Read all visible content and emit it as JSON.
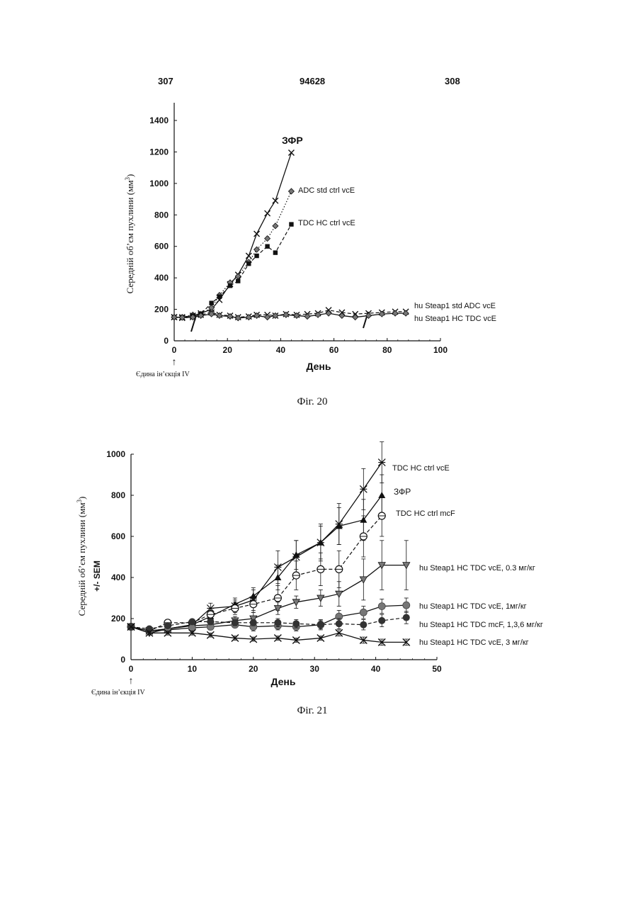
{
  "header": {
    "left": "307",
    "center": "94628",
    "right": "308"
  },
  "figures": [
    {
      "caption": "Фіг. 20",
      "injection_note": "Єдина ін’єкція IV"
    },
    {
      "caption": "Фіг. 21",
      "injection_note": "Єдина ін’єкція IV"
    }
  ],
  "colors": {
    "ink": "#111111",
    "marker_gray": "#777777"
  },
  "chart_data": [
    {
      "type": "line",
      "xlabel": "День",
      "ylabel": "Середній об’єм пухлини (мм",
      "ylabel_sup": "3",
      "ylabel_close": ")",
      "xlim": [
        0,
        100
      ],
      "ylim": [
        0,
        1400
      ],
      "xticks": [
        0,
        20,
        40,
        60,
        80,
        100
      ],
      "yticks": [
        0,
        200,
        400,
        600,
        800,
        1000,
        1200,
        1400
      ],
      "series": [
        {
          "name": "ЗФР",
          "marker": "x",
          "dash": "solid",
          "x": [
            0,
            3,
            7,
            10,
            14,
            17,
            21,
            24,
            28,
            31,
            35,
            38,
            44
          ],
          "y": [
            150,
            150,
            160,
            175,
            200,
            260,
            360,
            420,
            540,
            680,
            810,
            890,
            1195
          ]
        },
        {
          "name": "ADC std ctrl vcE",
          "marker": "diamond",
          "dash": "dotted",
          "x": [
            0,
            3,
            7,
            10,
            14,
            17,
            21,
            24,
            28,
            31,
            35,
            38,
            44
          ],
          "y": [
            150,
            150,
            165,
            170,
            210,
            290,
            370,
            410,
            500,
            580,
            650,
            730,
            950
          ]
        },
        {
          "name": "TDC HC ctrl vcE",
          "marker": "square",
          "dash": "dashed",
          "x": [
            0,
            3,
            7,
            10,
            14,
            17,
            21,
            24,
            28,
            31,
            35,
            38,
            44
          ],
          "y": [
            150,
            150,
            160,
            170,
            240,
            280,
            350,
            380,
            490,
            540,
            600,
            560,
            740
          ]
        },
        {
          "name": "hu Steap1 std ADC vcE",
          "marker": "x",
          "dash": "dashed",
          "x": [
            0,
            3,
            7,
            10,
            14,
            17,
            21,
            24,
            28,
            31,
            35,
            38,
            42,
            46,
            50,
            54,
            58,
            63,
            68,
            73,
            78,
            83,
            87
          ],
          "y": [
            150,
            145,
            150,
            165,
            180,
            165,
            160,
            150,
            155,
            165,
            165,
            160,
            170,
            165,
            170,
            175,
            195,
            180,
            170,
            175,
            180,
            185,
            185
          ]
        },
        {
          "name": "hu Steap1 HC TDC vcE",
          "marker": "diamond",
          "dash": "solid",
          "x": [
            0,
            3,
            7,
            10,
            14,
            17,
            21,
            24,
            28,
            31,
            35,
            38,
            42,
            46,
            50,
            54,
            58,
            63,
            68,
            73,
            78,
            83,
            87
          ],
          "y": [
            150,
            148,
            150,
            160,
            170,
            160,
            155,
            145,
            150,
            160,
            150,
            160,
            165,
            160,
            155,
            165,
            175,
            160,
            150,
            160,
            170,
            175,
            175
          ]
        }
      ]
    },
    {
      "type": "line",
      "xlabel": "День",
      "ylabel": "Середній об’єм пухлини (мм",
      "ylabel_sup": "3",
      "ylabel_close": ")",
      "ylabel2": "+/- SEM",
      "xlim": [
        0,
        50
      ],
      "ylim": [
        0,
        1000
      ],
      "xticks": [
        0,
        10,
        20,
        30,
        40,
        50
      ],
      "yticks": [
        0,
        200,
        400,
        600,
        800,
        1000
      ],
      "series": [
        {
          "name": "TDC HC ctrl vcE",
          "marker": "star",
          "dash": "solid",
          "x": [
            0,
            3,
            6,
            10,
            13,
            17,
            20,
            24,
            27,
            31,
            34,
            38,
            41
          ],
          "y": [
            160,
            140,
            150,
            170,
            250,
            260,
            290,
            450,
            500,
            570,
            660,
            830,
            960
          ],
          "err": [
            0,
            10,
            10,
            15,
            25,
            30,
            50,
            80,
            80,
            90,
            100,
            100,
            100
          ]
        },
        {
          "name": "ЗФР",
          "marker": "triangle",
          "dash": "solid",
          "x": [
            0,
            3,
            6,
            10,
            13,
            17,
            20,
            24,
            27,
            31,
            34,
            38,
            41
          ],
          "y": [
            160,
            140,
            150,
            170,
            210,
            270,
            310,
            400,
            510,
            570,
            650,
            680,
            800
          ],
          "err": [
            0,
            10,
            10,
            15,
            20,
            30,
            40,
            60,
            70,
            80,
            90,
            100,
            100
          ]
        },
        {
          "name": "TDC HC ctrl mcF",
          "marker": "circle-open",
          "dash": "dashed",
          "x": [
            0,
            3,
            6,
            10,
            13,
            17,
            20,
            24,
            27,
            31,
            34,
            38,
            41
          ],
          "y": [
            160,
            140,
            180,
            180,
            220,
            250,
            270,
            300,
            410,
            440,
            440,
            600,
            700
          ],
          "err": [
            0,
            10,
            10,
            15,
            20,
            30,
            40,
            60,
            70,
            80,
            90,
            100,
            100
          ]
        },
        {
          "name": "hu Steap1 HC TDC vcE, 0.3 мг/кг",
          "marker": "triangle-down",
          "dash": "solid",
          "x": [
            0,
            3,
            6,
            10,
            13,
            17,
            20,
            24,
            27,
            31,
            34,
            38,
            41,
            45
          ],
          "y": [
            160,
            130,
            150,
            165,
            170,
            190,
            200,
            250,
            280,
            300,
            320,
            390,
            460,
            460
          ],
          "err": [
            0,
            10,
            10,
            15,
            20,
            20,
            30,
            30,
            30,
            40,
            60,
            100,
            120,
            120
          ]
        },
        {
          "name": "hu Steap1 HC TDC vcE, 1мг/кг",
          "marker": "circle-gray",
          "dash": "solid",
          "x": [
            0,
            3,
            6,
            10,
            13,
            17,
            20,
            24,
            27,
            31,
            34,
            38,
            41,
            45
          ],
          "y": [
            160,
            140,
            145,
            155,
            160,
            170,
            160,
            165,
            160,
            170,
            210,
            230,
            260,
            265
          ],
          "err": [
            0,
            10,
            10,
            10,
            15,
            15,
            20,
            20,
            20,
            25,
            30,
            30,
            35,
            35
          ]
        },
        {
          "name": "hu Steap1 HC TDC mcF, 1,3,6 мг/кг",
          "marker": "circle-filled",
          "dash": "dashed",
          "x": [
            0,
            3,
            6,
            10,
            13,
            17,
            20,
            24,
            27,
            31,
            34,
            38,
            41,
            45
          ],
          "y": [
            160,
            150,
            165,
            185,
            185,
            180,
            180,
            180,
            175,
            170,
            175,
            170,
            190,
            205
          ],
          "err": [
            0,
            10,
            10,
            10,
            15,
            15,
            15,
            20,
            20,
            20,
            25,
            25,
            30,
            30
          ]
        },
        {
          "name": "hu Steap1 HC TDC vcE, 3 мг/кг",
          "marker": "x",
          "dash": "solid",
          "x": [
            0,
            3,
            6,
            10,
            13,
            17,
            20,
            24,
            27,
            31,
            34,
            38,
            41,
            45
          ],
          "y": [
            160,
            130,
            130,
            130,
            120,
            105,
            100,
            105,
            95,
            105,
            130,
            95,
            85,
            85
          ],
          "err": [
            0,
            10,
            10,
            10,
            10,
            10,
            10,
            10,
            10,
            10,
            15,
            15,
            15,
            15
          ]
        }
      ]
    }
  ]
}
